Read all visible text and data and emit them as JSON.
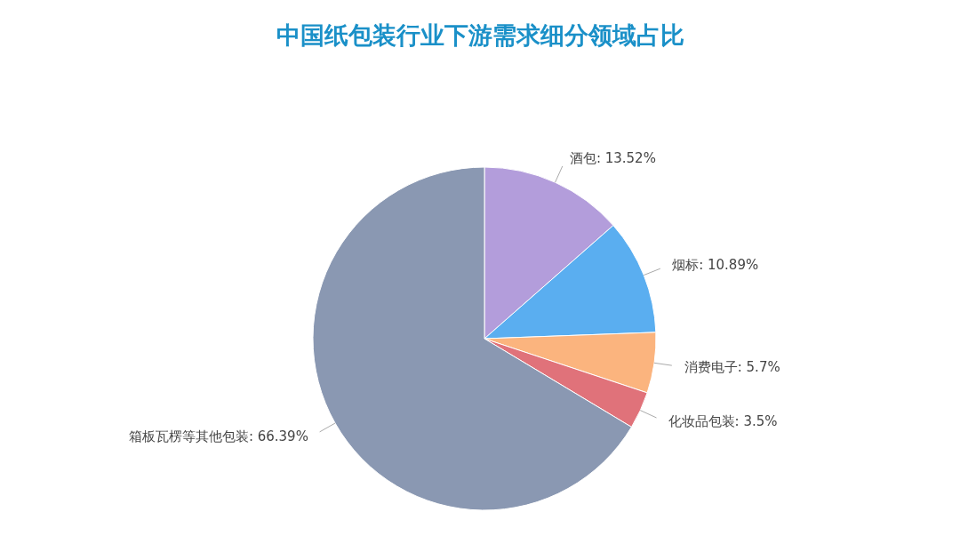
{
  "chart_data": {
    "type": "pie",
    "title": "中国纸包装行业下游需求细分领域占比",
    "categories": [
      "酒包",
      "烟标",
      "消费电子",
      "化妆品包装",
      "箱板瓦楞等其他包装"
    ],
    "values": [
      13.52,
      10.89,
      5.7,
      3.5,
      66.39
    ],
    "value_labels": [
      "13.52%",
      "10.89%",
      "5.7%",
      "3.5%",
      "66.39%"
    ],
    "colors": [
      "#b39ddb",
      "#5aaef0",
      "#fbb47e",
      "#e0727a",
      "#8a98b2"
    ],
    "legend": false
  }
}
